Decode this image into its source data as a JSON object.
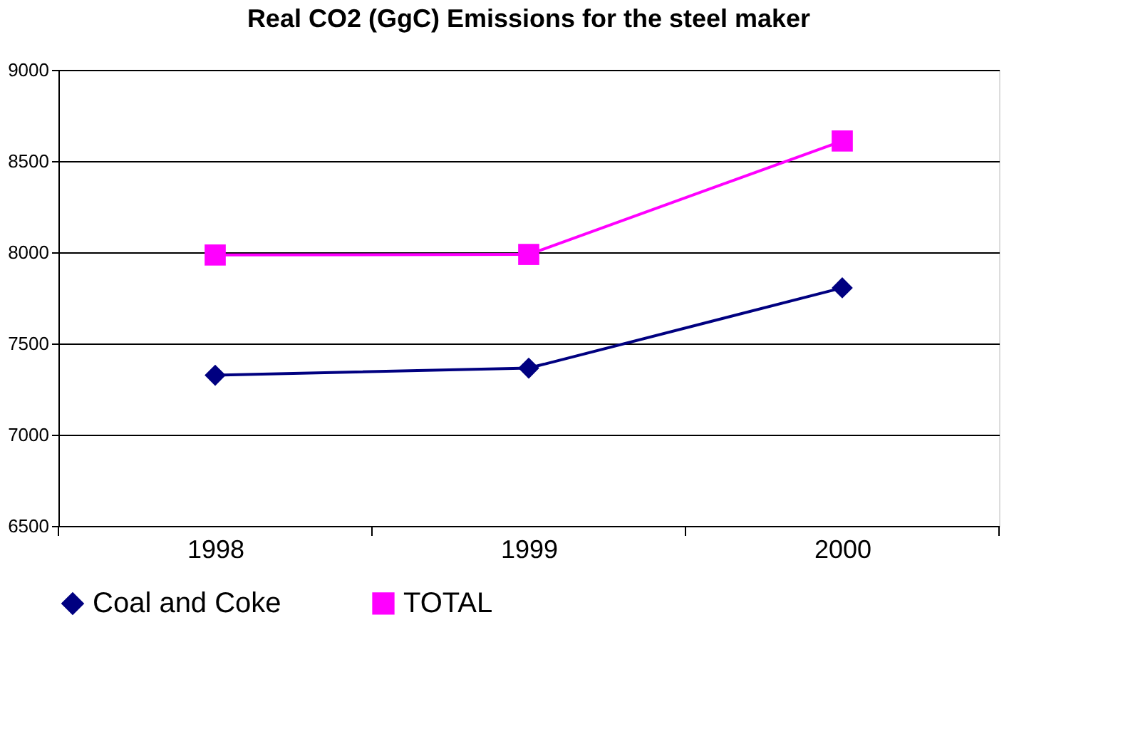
{
  "chart_data": {
    "type": "line",
    "title": "Real CO2 (GgC) Emissions for the steel maker",
    "categories": [
      "1998",
      "1999",
      "2000"
    ],
    "series": [
      {
        "name": "Coal and Coke",
        "color": "#000080",
        "marker": "diamond",
        "values": [
          7326,
          7365,
          7805
        ]
      },
      {
        "name": "TOTAL",
        "color": "#ff00ff",
        "marker": "square",
        "values": [
          7985,
          7988,
          8610
        ]
      }
    ],
    "ylim": [
      6500,
      9000
    ],
    "yticks": [
      6500,
      7000,
      7500,
      8000,
      8500,
      9000
    ],
    "grid": "y",
    "legend": "bottom",
    "line_style": "solid"
  }
}
